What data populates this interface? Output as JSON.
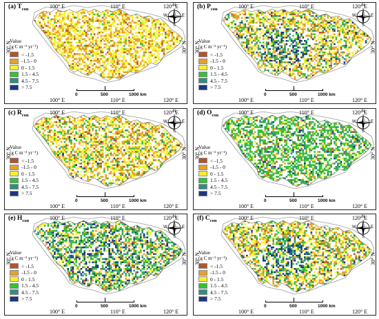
{
  "legend": {
    "title": "Value",
    "unit": "(g C m⁻² yr⁻¹)",
    "classes": [
      {
        "label": "< -1.5",
        "color": "#b5542a"
      },
      {
        "label": "-1.5 - 0",
        "color": "#e5a12e"
      },
      {
        "label": "0 - 1.5",
        "color": "#f7f02d"
      },
      {
        "label": "1.5 - 4.5",
        "color": "#35c038"
      },
      {
        "label": "4.5 - 7.5",
        "color": "#2f8f7e"
      },
      {
        "label": "> 7.5",
        "color": "#1c3680"
      }
    ]
  },
  "axes": {
    "lon_100": "100° E",
    "lon_110": "110° E",
    "lon_120": "120° E",
    "lat_30": "30° N"
  },
  "scalebar": {
    "zero": "0",
    "mid": "500",
    "end": "1000 km"
  },
  "compass": {
    "n": "N",
    "s": "S",
    "e": "E",
    "w": "W"
  },
  "panels": [
    {
      "id": "a",
      "prefix": "(a) ",
      "letter": "T",
      "sub": "con",
      "weights": [
        0.06,
        0.34,
        0.55,
        0.05,
        0.0,
        0.0
      ]
    },
    {
      "id": "b",
      "prefix": "(b) ",
      "letter": "P",
      "sub": "con",
      "weights": [
        0.06,
        0.3,
        0.34,
        0.18,
        0.07,
        0.05
      ]
    },
    {
      "id": "c",
      "prefix": "(c) ",
      "letter": "R",
      "sub": "con",
      "weights": [
        0.07,
        0.34,
        0.38,
        0.16,
        0.03,
        0.02
      ]
    },
    {
      "id": "d",
      "prefix": "(d) ",
      "letter": "O",
      "sub": "con",
      "weights": [
        0.03,
        0.1,
        0.12,
        0.55,
        0.15,
        0.05
      ]
    },
    {
      "id": "e",
      "prefix": "(e) ",
      "letter": "H",
      "sub": "con",
      "weights": [
        0.05,
        0.12,
        0.18,
        0.33,
        0.17,
        0.15
      ]
    },
    {
      "id": "f",
      "prefix": "(f) ",
      "letter": "C",
      "sub": "con",
      "weights": [
        0.06,
        0.28,
        0.34,
        0.2,
        0.06,
        0.06
      ]
    }
  ]
}
